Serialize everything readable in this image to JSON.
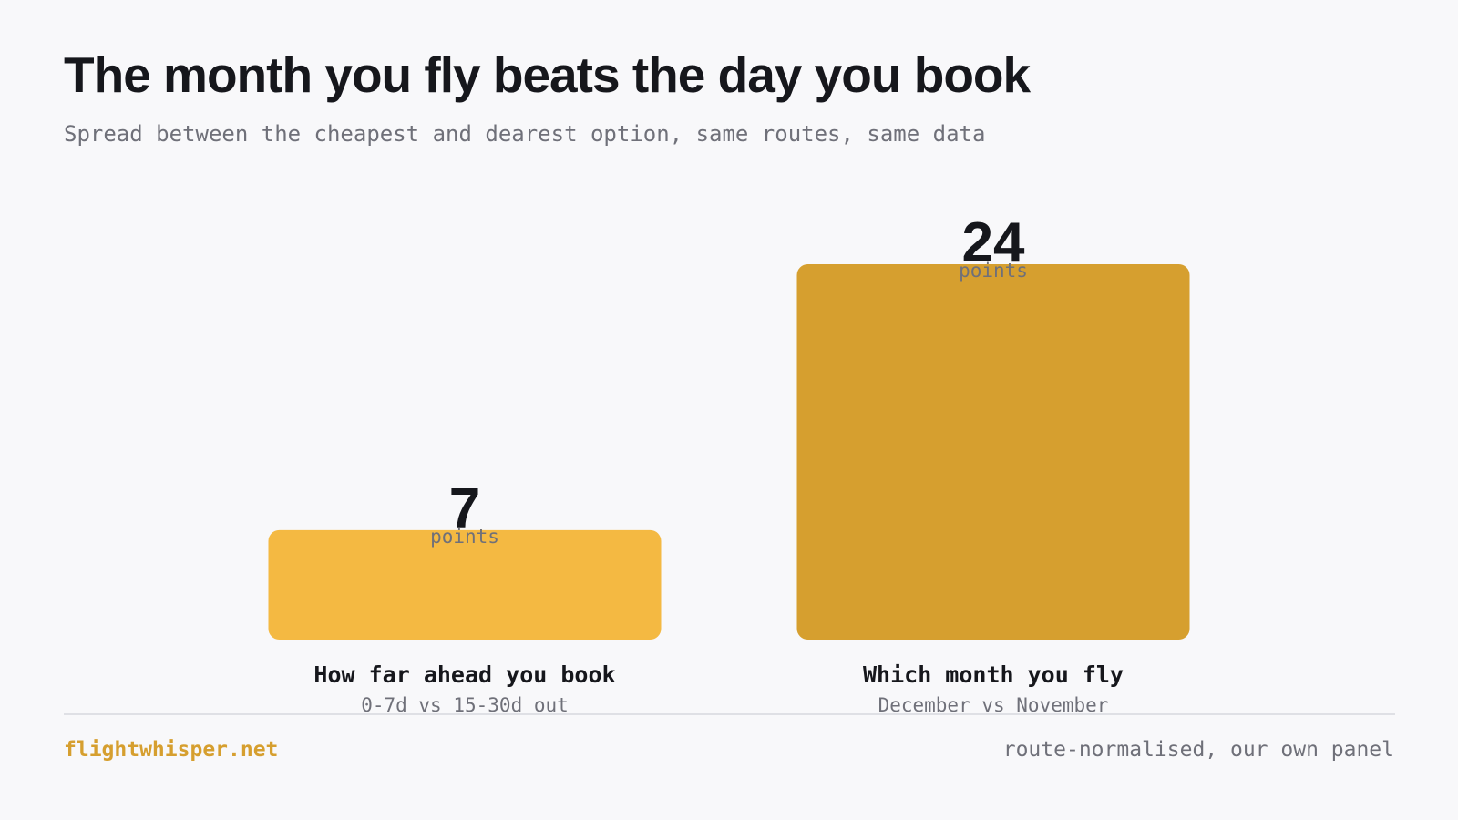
{
  "title": "The month you fly beats the day you book",
  "subtitle": "Spread between the cheapest and dearest option, same routes, same data",
  "chart_data": {
    "type": "bar",
    "categories": [
      "How far ahead you book",
      "Which month you fly"
    ],
    "category_sublabels": [
      "0-7d vs 15-30d out",
      "December vs November"
    ],
    "values": [
      7,
      24
    ],
    "value_unit_label": "points",
    "ylim": [
      0,
      24
    ],
    "grid": false,
    "bar_colors": [
      "#f4b942",
      "#d69f2f"
    ]
  },
  "footer": {
    "brand": "flightwhisper.net",
    "note": "route-normalised, our own panel"
  },
  "colors": {
    "background": "#f8f8fa",
    "text": "#16171c",
    "muted": "#6f7079",
    "accent": "#d69f2f"
  }
}
